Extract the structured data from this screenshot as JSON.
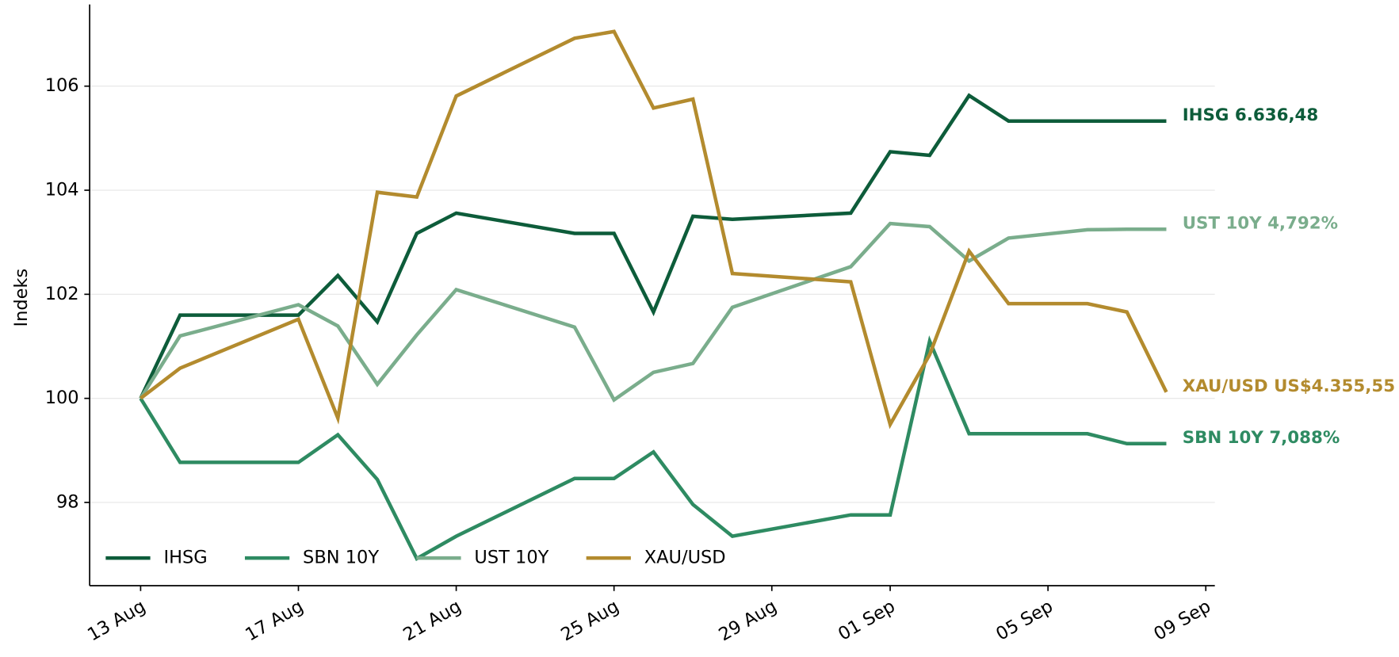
{
  "chart_data": {
    "type": "line",
    "ylabel": "Indeks",
    "x": [
      "08-13",
      "08-14",
      "08-17",
      "08-18",
      "08-19",
      "08-20",
      "08-21",
      "08-24",
      "08-25",
      "08-26",
      "08-27",
      "08-28",
      "08-31",
      "09-01",
      "09-02",
      "09-03",
      "09-04",
      "09-06",
      "09-07",
      "09-08"
    ],
    "series": [
      {
        "name": "IHSG",
        "color": "#0d5c3a",
        "end_label": "IHSG 6.636,48",
        "values": [
          100,
          101.6,
          101.6,
          102.36,
          101.47,
          103.17,
          103.56,
          103.17,
          103.17,
          101.66,
          103.5,
          103.44,
          103.56,
          104.74,
          104.67,
          105.82,
          105.33,
          105.33,
          105.33,
          105.33
        ]
      },
      {
        "name": "SBN 10Y",
        "color": "#2e8b62",
        "end_label": "SBN 10Y 7,088%",
        "values": [
          100,
          98.77,
          98.77,
          99.3,
          98.44,
          96.92,
          97.35,
          98.46,
          98.46,
          98.97,
          97.96,
          97.35,
          97.76,
          97.76,
          101.1,
          99.32,
          99.32,
          99.32,
          99.13,
          99.13
        ]
      },
      {
        "name": "UST 10Y",
        "color": "#7aad8c",
        "end_label": "UST 10Y 4,792%",
        "values": [
          100,
          101.2,
          101.8,
          101.39,
          100.27,
          101.22,
          102.09,
          101.37,
          99.97,
          100.5,
          100.67,
          101.75,
          102.53,
          103.36,
          103.3,
          102.64,
          103.08,
          103.24,
          103.25,
          103.25
        ]
      },
      {
        "name": "XAU/USD",
        "color": "#b38b2e",
        "end_label": "XAU/USD US$4.355,55",
        "values": [
          100,
          100.58,
          101.52,
          99.62,
          103.96,
          103.87,
          105.81,
          106.92,
          107.05,
          105.58,
          105.75,
          102.4,
          102.24,
          99.5,
          100.84,
          102.83,
          101.82,
          101.82,
          101.66,
          100.12
        ]
      }
    ],
    "xlim": [
      "08-11T17:00",
      "09-09T05:30"
    ],
    "xticks": [
      {
        "value": "08-13",
        "label": "13 Aug"
      },
      {
        "value": "08-17",
        "label": "17 Aug"
      },
      {
        "value": "08-21",
        "label": "21 Aug"
      },
      {
        "value": "08-25",
        "label": "25 Aug"
      },
      {
        "value": "08-29",
        "label": "29 Aug"
      },
      {
        "value": "09-01",
        "label": "01 Sep"
      },
      {
        "value": "09-05",
        "label": "05 Sep"
      },
      {
        "value": "09-09",
        "label": "09 Sep"
      }
    ],
    "ylim": [
      96.4,
      107.57
    ],
    "yticks": [
      98,
      100,
      102,
      104,
      106
    ],
    "grid": "y",
    "legend": "lower left"
  }
}
